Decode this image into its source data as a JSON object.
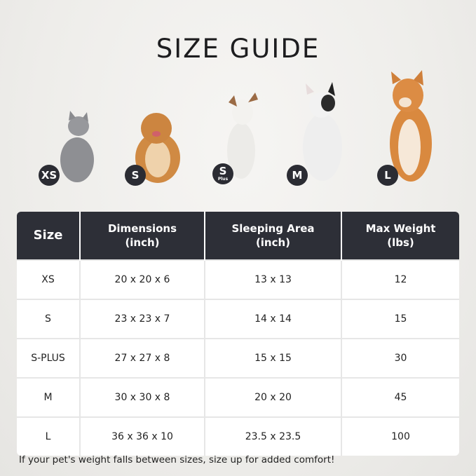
{
  "title": "SIZE GUIDE",
  "pets": [
    {
      "badge": "XS",
      "sub": "",
      "animal": "gray-cat",
      "color": "#8e8f93"
    },
    {
      "badge": "S",
      "sub": "",
      "animal": "pomeranian",
      "color": "#d08a43"
    },
    {
      "badge": "S",
      "sub": "Plus",
      "animal": "jack-russell",
      "color": "#ecebe8"
    },
    {
      "badge": "M",
      "sub": "",
      "animal": "french-bulldog",
      "color": "#eeeeee"
    },
    {
      "badge": "L",
      "sub": "",
      "animal": "shiba-inu",
      "color": "#d9893f"
    }
  ],
  "table": {
    "headers": [
      {
        "line1": "Size",
        "line2": ""
      },
      {
        "line1": "Dimensions",
        "line2": "(inch)"
      },
      {
        "line1": "Sleeping Area",
        "line2": "(inch)"
      },
      {
        "line1": "Max Weight",
        "line2": "(lbs)"
      }
    ],
    "rows": [
      [
        "XS",
        "20 x 20 x 6",
        "13 x 13",
        "12"
      ],
      [
        "S",
        "23 x 23 x 7",
        "14 x 14",
        "15"
      ],
      [
        "S-PLUS",
        "27 x 27 x 8",
        "15 x 15",
        "30"
      ],
      [
        "M",
        "30 x 30 x 8",
        "20 x 20",
        "45"
      ],
      [
        "L",
        "36 x 36 x 10",
        "23.5 x 23.5",
        "100"
      ]
    ]
  },
  "footer": "If your pet's weight falls between sizes, size up for added comfort!",
  "colors": {
    "header_bg": "#2d2f37",
    "badge_bg": "#2b2c33"
  }
}
